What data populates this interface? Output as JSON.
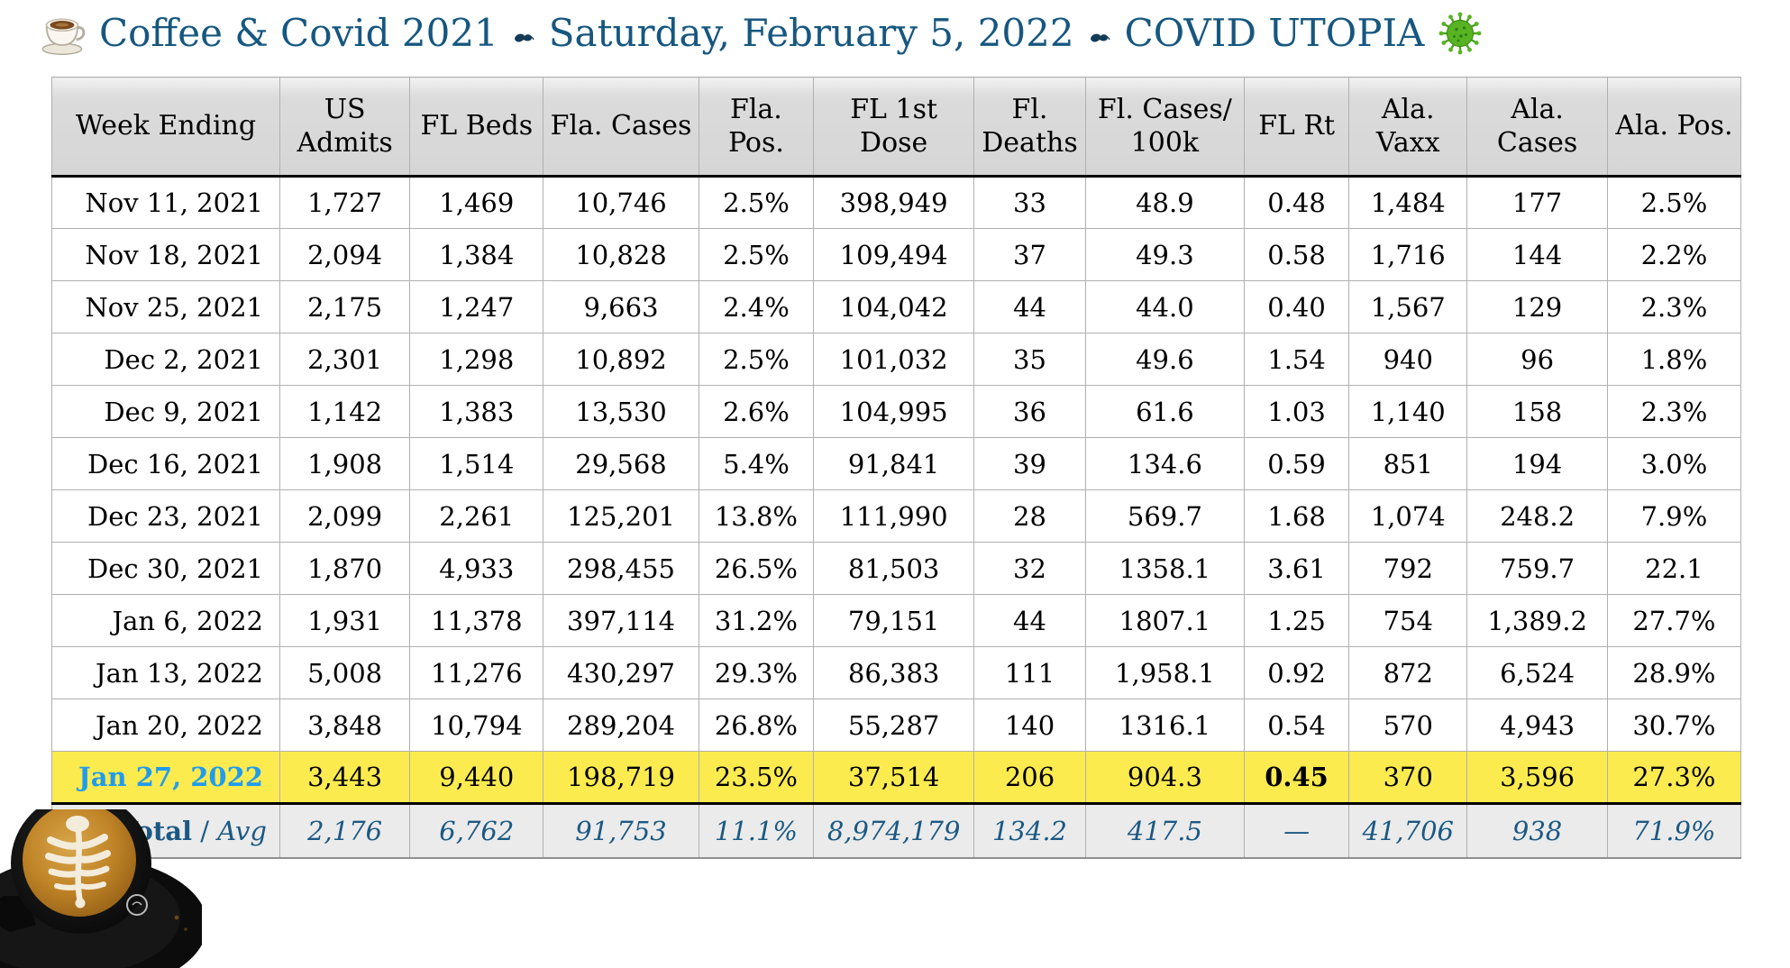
{
  "header": {
    "part1": "Coffee & Covid 2021",
    "sep1": "❧",
    "part2": "Saturday, February 5, 2022",
    "sep2": "❧",
    "part3": "COVID UTOPIA",
    "icons": {
      "left": "coffee-cup",
      "separators": "hedera-leaf-ornament",
      "right": "green-virus"
    },
    "title_color": "#165780"
  },
  "chart_data": {
    "type": "table",
    "title": "Coffee & Covid 2021 ❧ Saturday, February 5, 2022 ❧ COVID UTOPIA",
    "columns": [
      "Week Ending",
      "US\nAdmits",
      "FL Beds",
      "Fla. Cases",
      "Fla. Pos.",
      "FL 1st\nDose",
      "Fl.\nDeaths",
      "Fl. Cases/\n100k",
      "FL Rt",
      "Ala.\nVaxx",
      "Ala.\nCases",
      "Ala. Pos."
    ],
    "column_widths_pct": [
      13.5,
      7.7,
      7.9,
      9.2,
      6.8,
      9.5,
      6.6,
      9.4,
      6.2,
      7.0,
      8.3,
      7.9
    ],
    "rows": [
      {
        "week_ending": "Nov 11, 2021",
        "values": [
          "1,727",
          "1,469",
          "10,746",
          "2.5%",
          "398,949",
          "33",
          "48.9",
          "0.48",
          "1,484",
          "177",
          "2.5%"
        ],
        "highlight": false
      },
      {
        "week_ending": "Nov 18, 2021",
        "values": [
          "2,094",
          "1,384",
          "10,828",
          "2.5%",
          "109,494",
          "37",
          "49.3",
          "0.58",
          "1,716",
          "144",
          "2.2%"
        ],
        "highlight": false
      },
      {
        "week_ending": "Nov 25, 2021",
        "values": [
          "2,175",
          "1,247",
          "9,663",
          "2.4%",
          "104,042",
          "44",
          "44.0",
          "0.40",
          "1,567",
          "129",
          "2.3%"
        ],
        "highlight": false
      },
      {
        "week_ending": "Dec 2, 2021",
        "values": [
          "2,301",
          "1,298",
          "10,892",
          "2.5%",
          "101,032",
          "35",
          "49.6",
          "1.54",
          "940",
          "96",
          "1.8%"
        ],
        "highlight": false
      },
      {
        "week_ending": "Dec 9, 2021",
        "values": [
          "1,142",
          "1,383",
          "13,530",
          "2.6%",
          "104,995",
          "36",
          "61.6",
          "1.03",
          "1,140",
          "158",
          "2.3%"
        ],
        "highlight": false
      },
      {
        "week_ending": "Dec 16, 2021",
        "values": [
          "1,908",
          "1,514",
          "29,568",
          "5.4%",
          "91,841",
          "39",
          "134.6",
          "0.59",
          "851",
          "194",
          "3.0%"
        ],
        "highlight": false
      },
      {
        "week_ending": "Dec 23, 2021",
        "values": [
          "2,099",
          "2,261",
          "125,201",
          "13.8%",
          "111,990",
          "28",
          "569.7",
          "1.68",
          "1,074",
          "248.2",
          "7.9%"
        ],
        "highlight": false
      },
      {
        "week_ending": "Dec 30, 2021",
        "values": [
          "1,870",
          "4,933",
          "298,455",
          "26.5%",
          "81,503",
          "32",
          "1358.1",
          "3.61",
          "792",
          "759.7",
          "22.1"
        ],
        "highlight": false
      },
      {
        "week_ending": "Jan 6, 2022",
        "values": [
          "1,931",
          "11,378",
          "397,114",
          "31.2%",
          "79,151",
          "44",
          "1807.1",
          "1.25",
          "754",
          "1,389.2",
          "27.7%"
        ],
        "highlight": false
      },
      {
        "week_ending": "Jan 13, 2022",
        "values": [
          "5,008",
          "11,276",
          "430,297",
          "29.3%",
          "86,383",
          "111",
          "1,958.1",
          "0.92",
          "872",
          "6,524",
          "28.9%"
        ],
        "highlight": false
      },
      {
        "week_ending": "Jan 20, 2022",
        "values": [
          "3,848",
          "10,794",
          "289,204",
          "26.8%",
          "55,287",
          "140",
          "1316.1",
          "0.54",
          "570",
          "4,943",
          "30.7%"
        ],
        "highlight": false
      },
      {
        "week_ending": "Jan 27, 2022",
        "values": [
          "3,443",
          "9,440",
          "198,719",
          "23.5%",
          "37,514",
          "206",
          "904.3",
          "0.45",
          "370",
          "3,596",
          "27.3%"
        ],
        "highlight": true,
        "bold_value_index": 7
      }
    ],
    "total_row": {
      "label": {
        "bold": "Total",
        "sep": " / ",
        "italic": "Avg"
      },
      "values": [
        "2,176",
        "6,762",
        "91,753",
        "11.1%",
        "8,974,179",
        "134.2",
        "417.5",
        "—",
        "41,706",
        "938",
        "71.9%"
      ]
    },
    "highlight_row_color": "#FCEB4F",
    "highlight_date_color": "#1F9CEE",
    "total_row_text_color": "#1B5983",
    "header_bg_color": "#D8D8D8"
  }
}
